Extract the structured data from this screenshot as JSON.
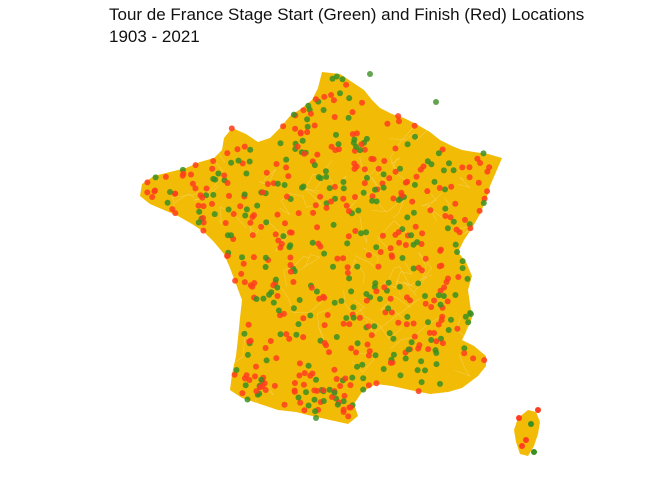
{
  "figure": {
    "title": "Tour de France Stage Start (Green) and Finish (Red) Locations",
    "subtitle": "1903 - 2021"
  },
  "colors": {
    "land": "#f2bb05",
    "border": "#f7d66a",
    "start": "#3a8f24",
    "finish": "#ff3d1f",
    "background": "#ffffff"
  },
  "chart_data": {
    "type": "scatter",
    "series_by_color": [
      "start",
      "finish"
    ],
    "points": []
  }
}
